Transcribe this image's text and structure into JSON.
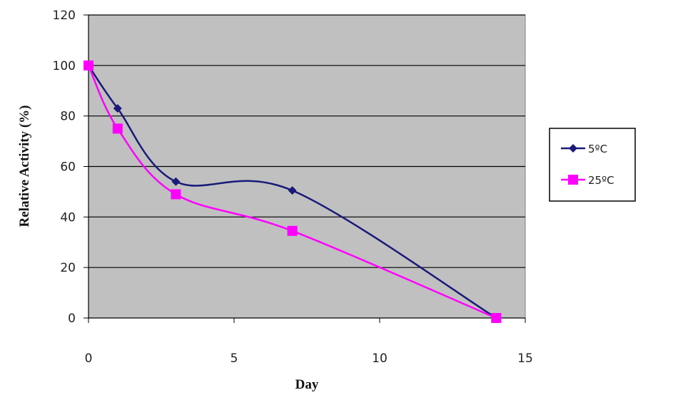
{
  "chart_data": {
    "type": "line",
    "title": "",
    "xlabel": "Day",
    "ylabel": "Relative Activity (%)",
    "xlim": [
      0,
      15
    ],
    "ylim": [
      0,
      120
    ],
    "xticks": [
      0,
      5,
      10,
      15
    ],
    "yticks": [
      0,
      20,
      40,
      60,
      80,
      100,
      120
    ],
    "grid": "horizontal",
    "plot_background": "#c0c0c0",
    "legend_position": "right",
    "series": [
      {
        "name": "5ºC",
        "color": "#1a1a7a",
        "marker": "diamond",
        "x": [
          0,
          1,
          3,
          7,
          14
        ],
        "y": [
          100,
          83,
          54,
          50.5,
          0
        ]
      },
      {
        "name": "25ºC",
        "color": "#ff00ff",
        "marker": "square",
        "x": [
          0,
          1,
          3,
          7,
          14
        ],
        "y": [
          100,
          75,
          49,
          34.5,
          0
        ]
      }
    ]
  }
}
